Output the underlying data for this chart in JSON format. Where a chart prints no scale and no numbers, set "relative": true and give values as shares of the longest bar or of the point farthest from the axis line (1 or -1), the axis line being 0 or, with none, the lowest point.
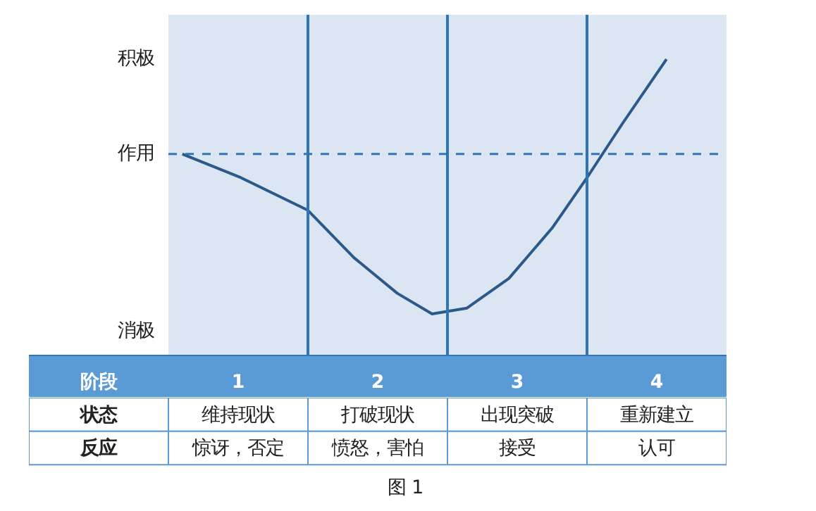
{
  "chart_data": [
    {
      "type": "line",
      "relative": true,
      "x": [
        0.1,
        0.52,
        1.0,
        1.33,
        1.64,
        1.89,
        2.14,
        2.44,
        2.75,
        3.0,
        3.25,
        3.57
      ],
      "values": [
        0.68,
        0.6,
        0.49,
        0.33,
        0.21,
        0.14,
        0.16,
        0.26,
        0.43,
        0.6,
        0.78,
        1.0
      ],
      "color": "#2b5a8a",
      "xlim": [
        -1,
        4
      ],
      "xticks": [
        {
          "value": 0.5,
          "label": "1"
        },
        {
          "value": 1.5,
          "label": "2"
        },
        {
          "value": 2.5,
          "label": "3"
        },
        {
          "value": 3.5,
          "label": "4"
        }
      ],
      "xlabel": "阶段",
      "tick_labels": "x",
      "bands": [
        {
          "axis": "x",
          "from": 0,
          "to": 4,
          "color": "#dce6f2"
        }
      ],
      "ref_lines": [
        {
          "axis": "x",
          "value": 1,
          "color": "#2e75b6"
        },
        {
          "axis": "x",
          "value": 2,
          "color": "#2e75b6"
        },
        {
          "axis": "x",
          "value": 3,
          "color": "#2e75b6"
        },
        {
          "axis": "y",
          "value": 0.68,
          "label": "作用",
          "color": "#2e75b6",
          "line_style": "dashed"
        }
      ],
      "annotations": [
        "积极",
        "消极"
      ]
    },
    {
      "type": "other",
      "categories": [
        "状态",
        "反应"
      ],
      "cell_labels": [
        [
          "维持现状",
          "打破现状",
          "出现突破",
          "重新建立"
        ],
        [
          "惊讶，否定",
          "愤怒，害怕",
          "接受",
          "认可"
        ]
      ],
      "annotations": [
        "图 1"
      ]
    }
  ]
}
